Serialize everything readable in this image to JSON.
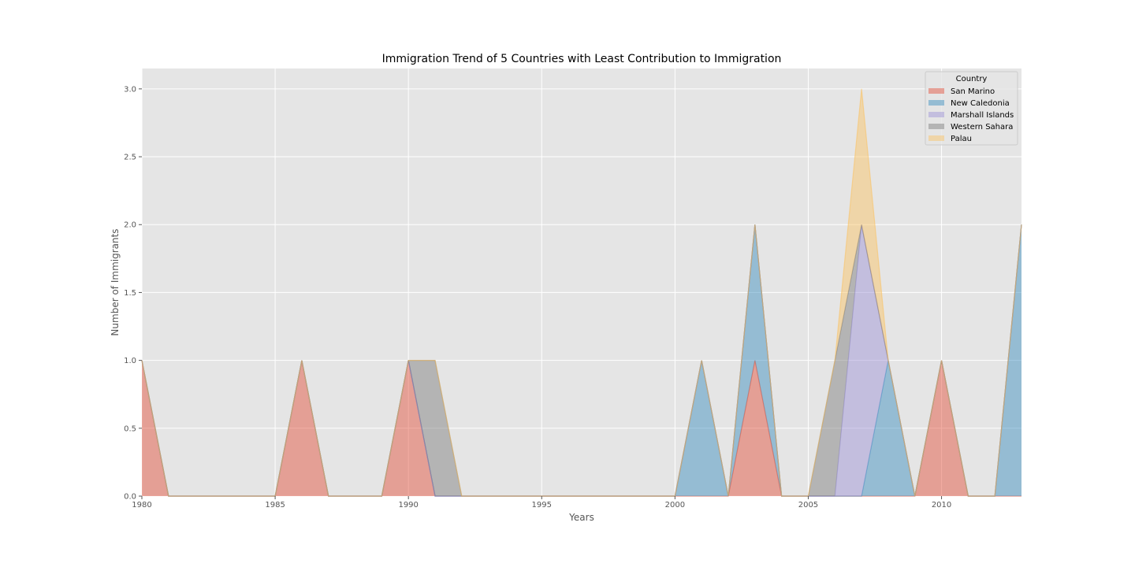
{
  "chart_data": {
    "type": "area",
    "stacked": true,
    "title": "Immigration Trend of 5 Countries with Least Contribution to Immigration",
    "xlabel": "Years",
    "ylabel": "Number of Immigrants",
    "xlim": [
      1980,
      2013
    ],
    "ylim": [
      0,
      3.15
    ],
    "xticks": [
      1980,
      1985,
      1990,
      1995,
      2000,
      2005,
      2010
    ],
    "xtick_labels": [
      "1980",
      "1985",
      "1990",
      "1995",
      "2000",
      "2005",
      "2010"
    ],
    "yticks": [
      0,
      0.5,
      1,
      1.5,
      2,
      2.5,
      3
    ],
    "ytick_labels": [
      "0.0",
      "0.5",
      "1.0",
      "1.5",
      "2.0",
      "2.5",
      "3.0"
    ],
    "grid": true,
    "background_color": "#e5e5e5",
    "grid_color": "#ffffff",
    "legend": {
      "title": "Country",
      "position": "top-right"
    },
    "x": [
      1980,
      1981,
      1982,
      1983,
      1984,
      1985,
      1986,
      1987,
      1988,
      1989,
      1990,
      1991,
      1992,
      1993,
      1994,
      1995,
      1996,
      1997,
      1998,
      1999,
      2000,
      2001,
      2002,
      2003,
      2004,
      2005,
      2006,
      2007,
      2008,
      2009,
      2010,
      2011,
      2012,
      2013
    ],
    "series": [
      {
        "name": "San Marino",
        "color": "#e24a33",
        "values": [
          1,
          0,
          0,
          0,
          0,
          0,
          1,
          0,
          0,
          0,
          1,
          0,
          0,
          0,
          0,
          0,
          0,
          0,
          0,
          0,
          0,
          0,
          0,
          1,
          0,
          0,
          0,
          0,
          0,
          0,
          1,
          0,
          0,
          0
        ]
      },
      {
        "name": "New Caledonia",
        "color": "#348abd",
        "values": [
          0,
          0,
          0,
          0,
          0,
          0,
          0,
          0,
          0,
          0,
          0,
          0,
          0,
          0,
          0,
          0,
          0,
          0,
          0,
          0,
          0,
          1,
          0,
          1,
          0,
          0,
          0,
          0,
          1,
          0,
          0,
          0,
          0,
          2
        ]
      },
      {
        "name": "Marshall Islands",
        "color": "#988ed5",
        "values": [
          0,
          0,
          0,
          0,
          0,
          0,
          0,
          0,
          0,
          0,
          0,
          0,
          0,
          0,
          0,
          0,
          0,
          0,
          0,
          0,
          0,
          0,
          0,
          0,
          0,
          0,
          0,
          2,
          0,
          0,
          0,
          0,
          0,
          0
        ]
      },
      {
        "name": "Western Sahara",
        "color": "#777777",
        "values": [
          0,
          0,
          0,
          0,
          0,
          0,
          0,
          0,
          0,
          0,
          0,
          1,
          0,
          0,
          0,
          0,
          0,
          0,
          0,
          0,
          0,
          0,
          0,
          0,
          0,
          0,
          1,
          0,
          0,
          0,
          0,
          0,
          0,
          0
        ]
      },
      {
        "name": "Palau",
        "color": "#fbc15e",
        "values": [
          0,
          0,
          0,
          0,
          0,
          0,
          0,
          0,
          0,
          0,
          0,
          0,
          0,
          0,
          0,
          0,
          0,
          0,
          0,
          0,
          0,
          0,
          0,
          0,
          0,
          0,
          0,
          1,
          0,
          0,
          0,
          0,
          0,
          0
        ]
      }
    ]
  }
}
